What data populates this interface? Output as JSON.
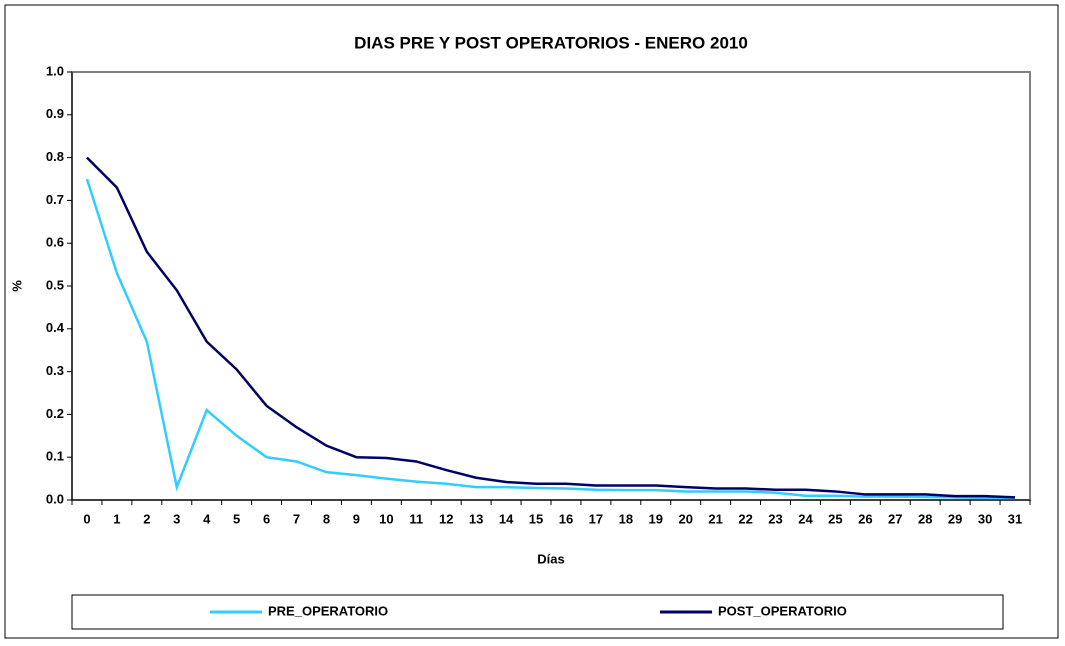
{
  "chart_data": {
    "type": "line",
    "title": "DIAS PRE Y POST OPERATORIOS  -  ENERO 2010",
    "xlabel": "Días",
    "ylabel": "%",
    "categories": [
      "0",
      "1",
      "2",
      "3",
      "4",
      "5",
      "6",
      "7",
      "8",
      "9",
      "10",
      "11",
      "12",
      "13",
      "14",
      "15",
      "16",
      "17",
      "18",
      "19",
      "20",
      "21",
      "22",
      "23",
      "24",
      "25",
      "26",
      "27",
      "28",
      "29",
      "30",
      "31"
    ],
    "series": [
      {
        "name": "PRE_OPERATORIO",
        "color": "#33ccff",
        "values": [
          0.75,
          0.53,
          0.37,
          0.03,
          0.21,
          0.15,
          0.1,
          0.09,
          0.065,
          0.058,
          0.05,
          0.043,
          0.038,
          0.03,
          0.03,
          0.028,
          0.027,
          0.024,
          0.023,
          0.023,
          0.02,
          0.02,
          0.02,
          0.017,
          0.01,
          0.01,
          0.008,
          0.008,
          0.007,
          0.006,
          0.005,
          0.004
        ]
      },
      {
        "name": "POST_OPERATORIO",
        "color": "#000066",
        "values": [
          0.8,
          0.73,
          0.58,
          0.49,
          0.37,
          0.305,
          0.22,
          0.17,
          0.127,
          0.1,
          0.098,
          0.09,
          0.07,
          0.052,
          0.042,
          0.038,
          0.038,
          0.034,
          0.034,
          0.034,
          0.03,
          0.027,
          0.027,
          0.024,
          0.024,
          0.02,
          0.013,
          0.013,
          0.013,
          0.009,
          0.009,
          0.006
        ]
      }
    ],
    "ylim": [
      0,
      1
    ],
    "yticks": [
      {
        "value": 0,
        "label": "0.0"
      },
      0.1,
      0.2,
      0.3,
      0.4,
      0.5,
      0.6,
      0.7,
      0.8,
      0.9,
      {
        "value": 1,
        "label": "1.0"
      }
    ],
    "grid": false,
    "legend": "bottom"
  }
}
